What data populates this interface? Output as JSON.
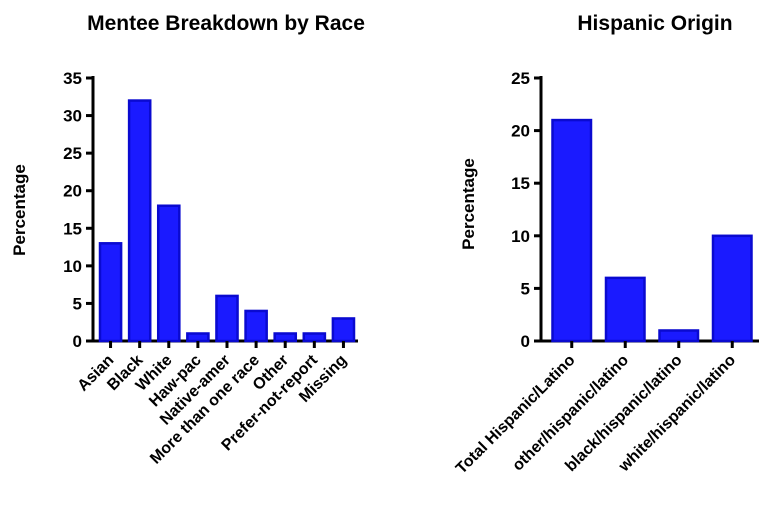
{
  "chart_data": [
    {
      "type": "bar",
      "title": "Mentee Breakdown by Race",
      "xlabel": "",
      "ylabel": "Percentage",
      "ylim": [
        0,
        35
      ],
      "yticks": [
        0,
        5,
        10,
        15,
        20,
        25,
        30,
        35
      ],
      "categories": [
        "Asian",
        "Black",
        "White",
        "Haw-pac",
        "Native-amer",
        "More than one race",
        "Other",
        "Prefer-not-report",
        "Missing"
      ],
      "values": [
        13,
        32,
        18,
        1,
        6,
        4,
        1,
        1,
        3
      ],
      "bar_color": "#1a1aff",
      "grid": false
    },
    {
      "type": "bar",
      "title": "Hispanic Origin",
      "xlabel": "",
      "ylabel": "Percentage",
      "ylim": [
        0,
        25
      ],
      "yticks": [
        0,
        5,
        10,
        15,
        20,
        25
      ],
      "categories": [
        "Total Hispanic/Latino",
        "other/hispanic/latino",
        "black/hispanic/latino",
        "white/hispanic/latino"
      ],
      "values": [
        21,
        6,
        1,
        10
      ],
      "bar_color": "#1a1aff",
      "grid": false
    }
  ]
}
